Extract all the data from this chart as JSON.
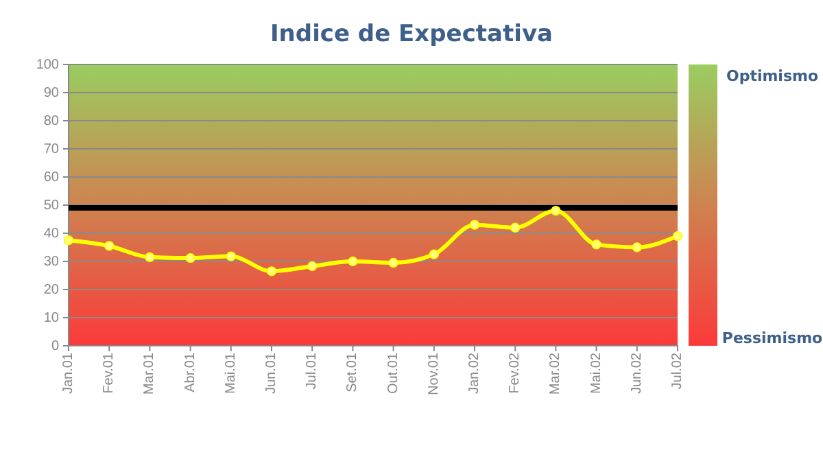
{
  "chart_data": {
    "type": "line",
    "title": "Indice de Expectativa",
    "categories": [
      "Jan.01",
      "Fev.01",
      "Mar.01",
      "Abr.01",
      "Mai.01",
      "Jun.01",
      "Jul.01",
      "Set.01",
      "Out.01",
      "Nov.01",
      "Jan.02",
      "Fev.02",
      "Mar.02",
      "Mai.02",
      "Jun.02",
      "Jul.02"
    ],
    "series": [
      {
        "color": "#ffff00",
        "values": [
          37.5,
          35.5,
          31.5,
          31.2,
          31.8,
          26.5,
          28.3,
          30,
          29.5,
          32.5,
          43,
          42,
          48,
          36,
          35,
          39
        ]
      }
    ],
    "ylim": [
      0,
      100
    ],
    "yticks": [
      0,
      10,
      20,
      30,
      40,
      50,
      60,
      70,
      80,
      90,
      100
    ],
    "grid": "y",
    "marker": "circle",
    "line_style": "solid",
    "ref_lines": [
      {
        "axis": "y",
        "value": 49,
        "color": "#000000"
      }
    ],
    "annotations": [
      "Optimismo",
      "Pessimismo"
    ]
  }
}
